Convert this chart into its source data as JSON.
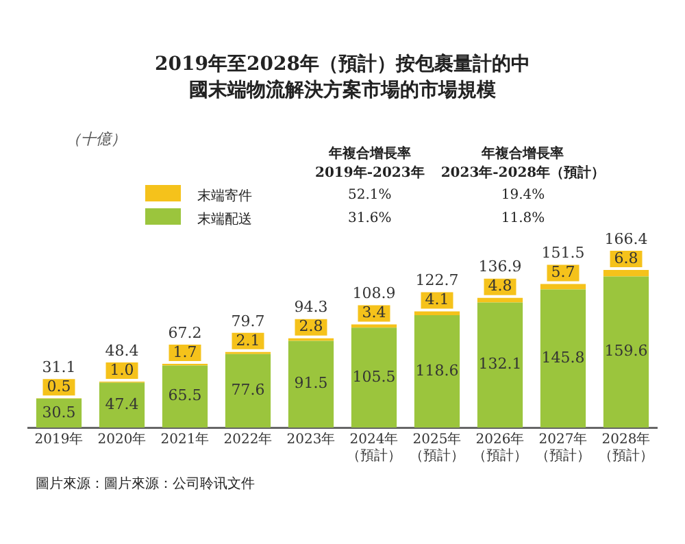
{
  "chart_data": {
    "type": "bar",
    "stacked": true,
    "title": "2019年至2028年（預計）按包裹量計的中國末端物流解決方案市場的市場規模",
    "categories": [
      "2019年",
      "2020年",
      "2021年",
      "2022年",
      "2023年",
      "2024年（預計）",
      "2025年（預計）",
      "2026年（預計）",
      "2027年（預計）",
      "2028年（預計）"
    ],
    "series": [
      {
        "name": "末端配送",
        "color": "#9bc53d",
        "values": [
          30.5,
          47.4,
          65.5,
          77.6,
          91.5,
          105.5,
          118.6,
          132.1,
          145.8,
          159.6
        ],
        "value_labels": [
          "30.5",
          "47.4",
          "65.5",
          "77.6",
          "91.5",
          "105.5",
          "118.6",
          "132.1",
          "145.8",
          "159.6"
        ]
      },
      {
        "name": "末端寄件",
        "color": "#f5c21b",
        "values": [
          0.5,
          1.0,
          1.7,
          2.1,
          2.8,
          3.4,
          4.1,
          4.8,
          5.7,
          6.8
        ],
        "value_labels": [
          "0.5",
          "1.0",
          "1.7",
          "2.1",
          "2.8",
          "3.4",
          "4.1",
          "4.8",
          "5.7",
          "6.8"
        ]
      }
    ],
    "totals": [
      "31.1",
      "48.4",
      "67.2",
      "79.7",
      "94.3",
      "108.9",
      "122.7",
      "136.9",
      "151.5",
      "166.4"
    ],
    "legend": "top",
    "annotations": [
      "（十億）",
      "年複合增長率2019年-2023年",
      "年複合增長率2023年-2028年（預計）",
      "52.1%",
      "19.4%",
      "31.6%",
      "11.8%",
      "圖片來源：圖片來源：公司聆讯文件"
    ]
  }
}
